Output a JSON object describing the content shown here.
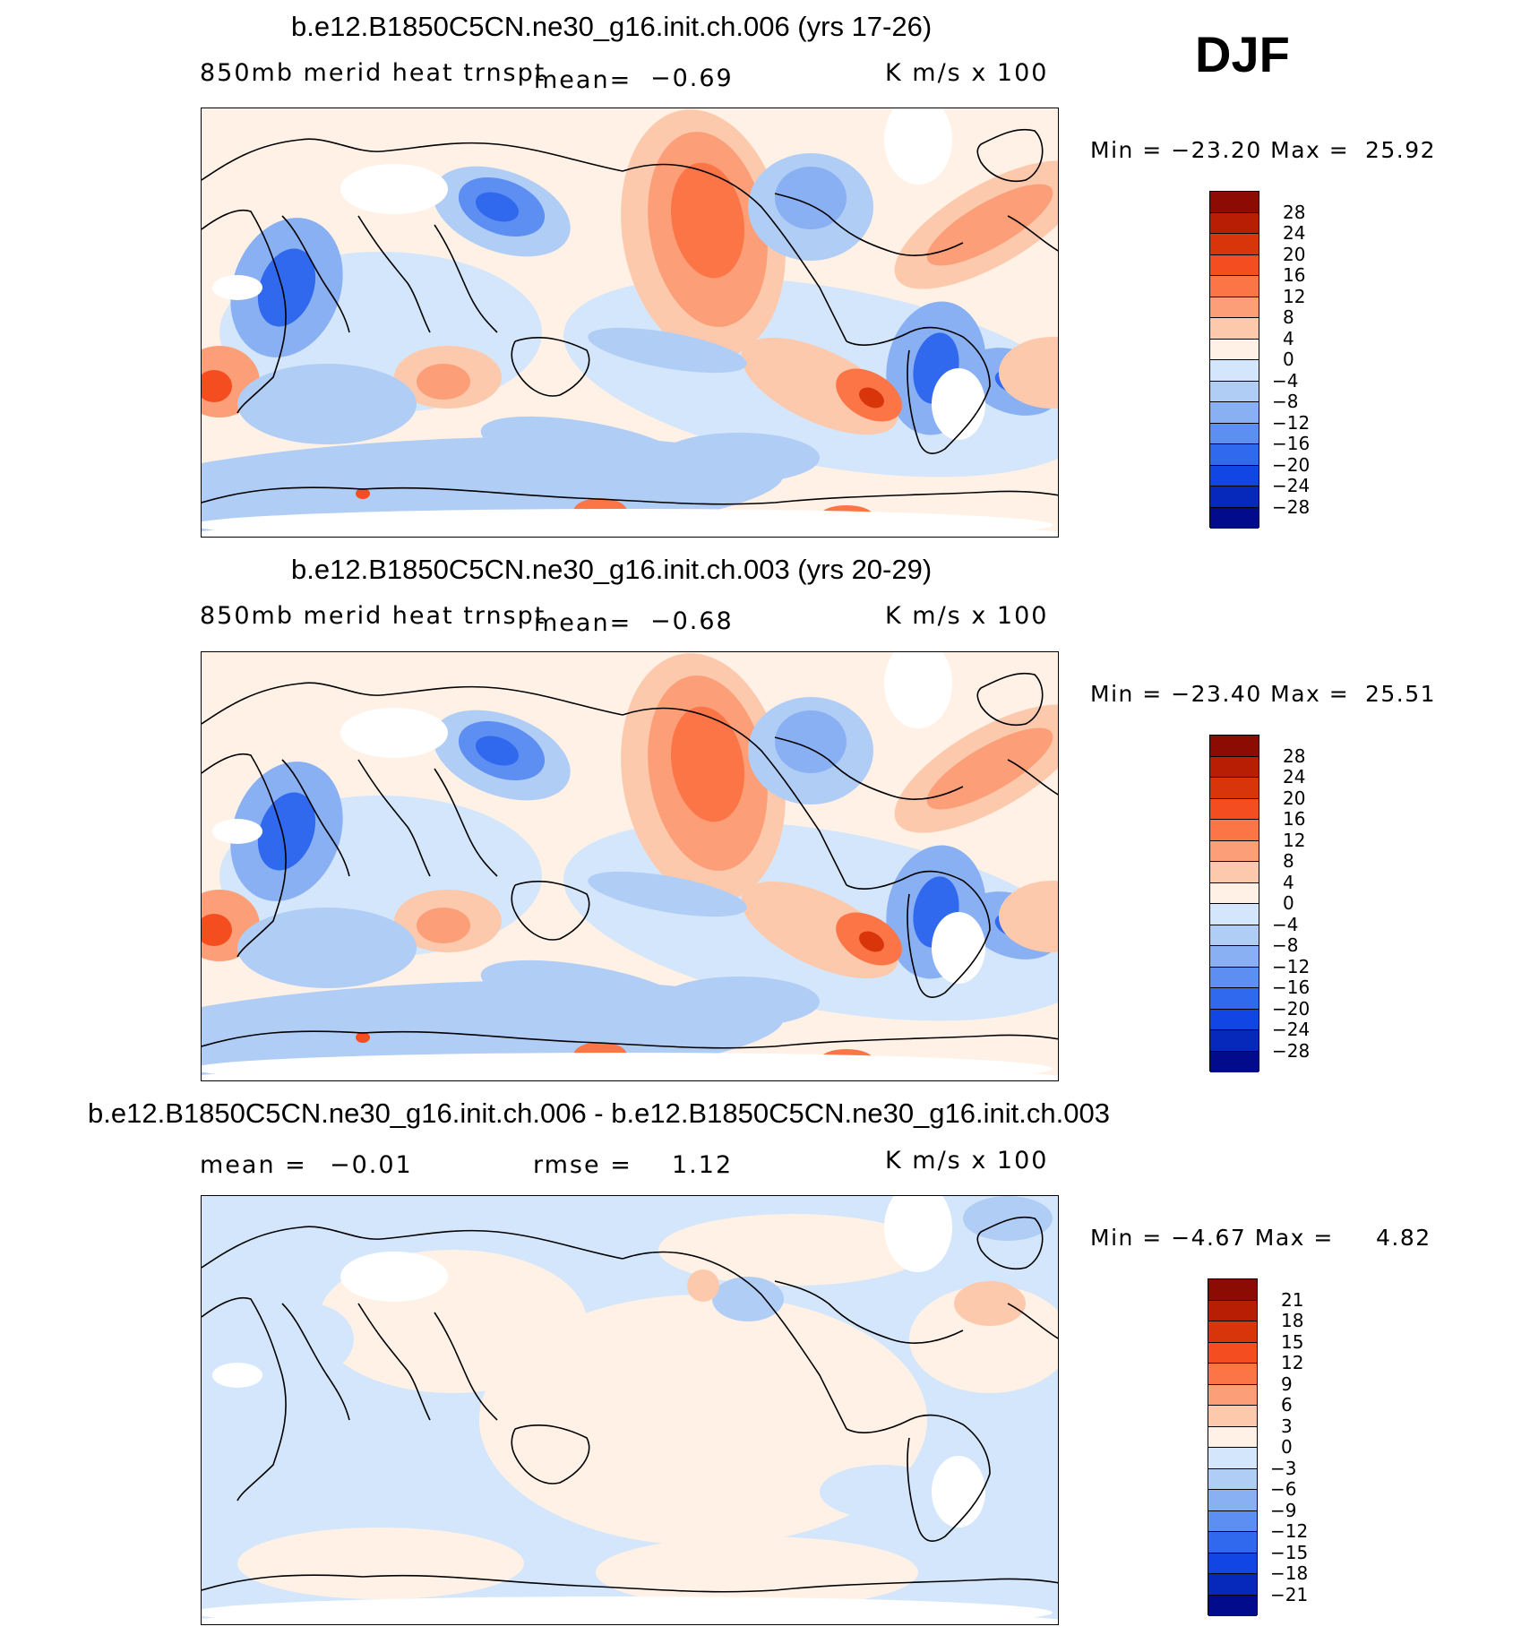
{
  "season": "DJF",
  "colors": {
    "positive": [
      "#fff1e6",
      "#fdc9ad",
      "#fc9e77",
      "#fb7547",
      "#f44e20",
      "#d9350b",
      "#b81e04",
      "#8c0b02"
    ],
    "negative": [
      "#d4e6fb",
      "#b0cdf6",
      "#8ab0f4",
      "#5d8ef1",
      "#3069ee",
      "#1146e5",
      "#0628bb",
      "#020b8c"
    ],
    "land_mask": "#ffffff",
    "coast": "#000000"
  },
  "panels": [
    {
      "title": "b.e12.B1850C5CN.ne30_g16.init.ch.006 (yrs 17-26)",
      "left_label": "850mb merid heat trnspt",
      "stat1_label": "mean=",
      "stat1_value": "−0.69",
      "stat2_label": "",
      "stat2_value": "",
      "units": "K m/s x 100",
      "min_text": "Min = −23.20 Max =",
      "max_text": "25.92",
      "scale": "full"
    },
    {
      "title": "b.e12.B1850C5CN.ne30_g16.init.ch.003 (yrs 20-29)",
      "left_label": "850mb merid heat trnspt",
      "stat1_label": "mean=",
      "stat1_value": "−0.68",
      "stat2_label": "",
      "stat2_value": "",
      "units": "K m/s x 100",
      "min_text": "Min = −23.40 Max =",
      "max_text": "25.51",
      "scale": "full"
    },
    {
      "title": "b.e12.B1850C5CN.ne30_g16.init.ch.006 - b.e12.B1850C5CN.ne30_g16.init.ch.003",
      "left_label": "mean =",
      "stat1_label": "",
      "stat1_value": "−0.01",
      "stat2_label": "rmse =",
      "stat2_value": "1.12",
      "units": "K m/s x 100",
      "min_text": "Min = −4.67 Max =",
      "max_text": "4.82",
      "scale": "diff"
    }
  ],
  "colorbars": {
    "full": [
      "28",
      "24",
      "20",
      "16",
      "12",
      "8",
      "4",
      "0",
      "−4",
      "−8",
      "−12",
      "−16",
      "−20",
      "−24",
      "−28"
    ],
    "diff": [
      "21",
      "18",
      "15",
      "12",
      "9",
      "6",
      "3",
      "0",
      "−3",
      "−6",
      "−9",
      "−12",
      "−15",
      "−18",
      "−21"
    ]
  },
  "chart_data": [
    {
      "type": "heatmap",
      "title": "b.e12.B1850C5CN.ne30_g16.init.ch.006 (yrs 17-26)",
      "variable": "850mb merid heat trnspt",
      "units": "K m/s x 100",
      "mean": -0.69,
      "min": -23.2,
      "max": 25.92,
      "contour_levels": [
        -28,
        -24,
        -20,
        -16,
        -12,
        -8,
        -4,
        0,
        4,
        8,
        12,
        16,
        20,
        24,
        28
      ]
    },
    {
      "type": "heatmap",
      "title": "b.e12.B1850C5CN.ne30_g16.init.ch.003 (yrs 20-29)",
      "variable": "850mb merid heat trnspt",
      "units": "K m/s x 100",
      "mean": -0.68,
      "min": -23.4,
      "max": 25.51,
      "contour_levels": [
        -28,
        -24,
        -20,
        -16,
        -12,
        -8,
        -4,
        0,
        4,
        8,
        12,
        16,
        20,
        24,
        28
      ]
    },
    {
      "type": "heatmap",
      "title": "b.e12.B1850C5CN.ne30_g16.init.ch.006 - b.e12.B1850C5CN.ne30_g16.init.ch.003",
      "units": "K m/s x 100",
      "mean": -0.01,
      "rmse": 1.12,
      "min": -4.67,
      "max": 4.82,
      "contour_levels": [
        -21,
        -18,
        -15,
        -12,
        -9,
        -6,
        -3,
        0,
        3,
        6,
        9,
        12,
        15,
        18,
        21
      ]
    }
  ]
}
